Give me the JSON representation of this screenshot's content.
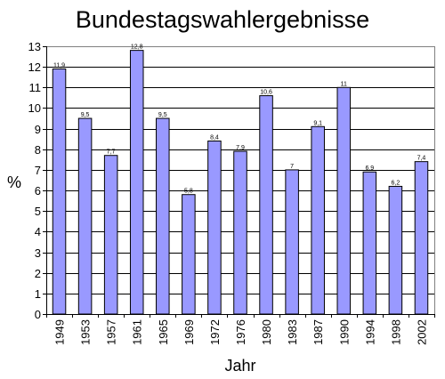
{
  "chart_data": {
    "type": "bar",
    "title": "Bundestagswahlergebnisse",
    "xlabel": "Jahr",
    "ylabel": "%",
    "ylim": [
      0,
      13
    ],
    "yticks": [
      0,
      1,
      2,
      3,
      4,
      5,
      6,
      7,
      8,
      9,
      10,
      11,
      12,
      13
    ],
    "grid": true,
    "legend": "none",
    "bar_color": "#9999ff",
    "bar_edge_color": "#000000",
    "categories": [
      "1949",
      "1953",
      "1957",
      "1961",
      "1965",
      "1969",
      "1972",
      "1976",
      "1980",
      "1983",
      "1987",
      "1990",
      "1994",
      "1998",
      "2002"
    ],
    "values": [
      11.9,
      9.5,
      7.7,
      12.8,
      9.5,
      5.8,
      8.4,
      7.9,
      10.6,
      7,
      9.1,
      11,
      6.9,
      6.2,
      7.4
    ],
    "data_labels": [
      "11,9",
      "9,5",
      "7,7",
      "12,8",
      "9,5",
      "5,8",
      "8,4",
      "7,9",
      "10,6",
      "7",
      "9,1",
      "11",
      "6,9",
      "6,2",
      "7,4"
    ]
  }
}
